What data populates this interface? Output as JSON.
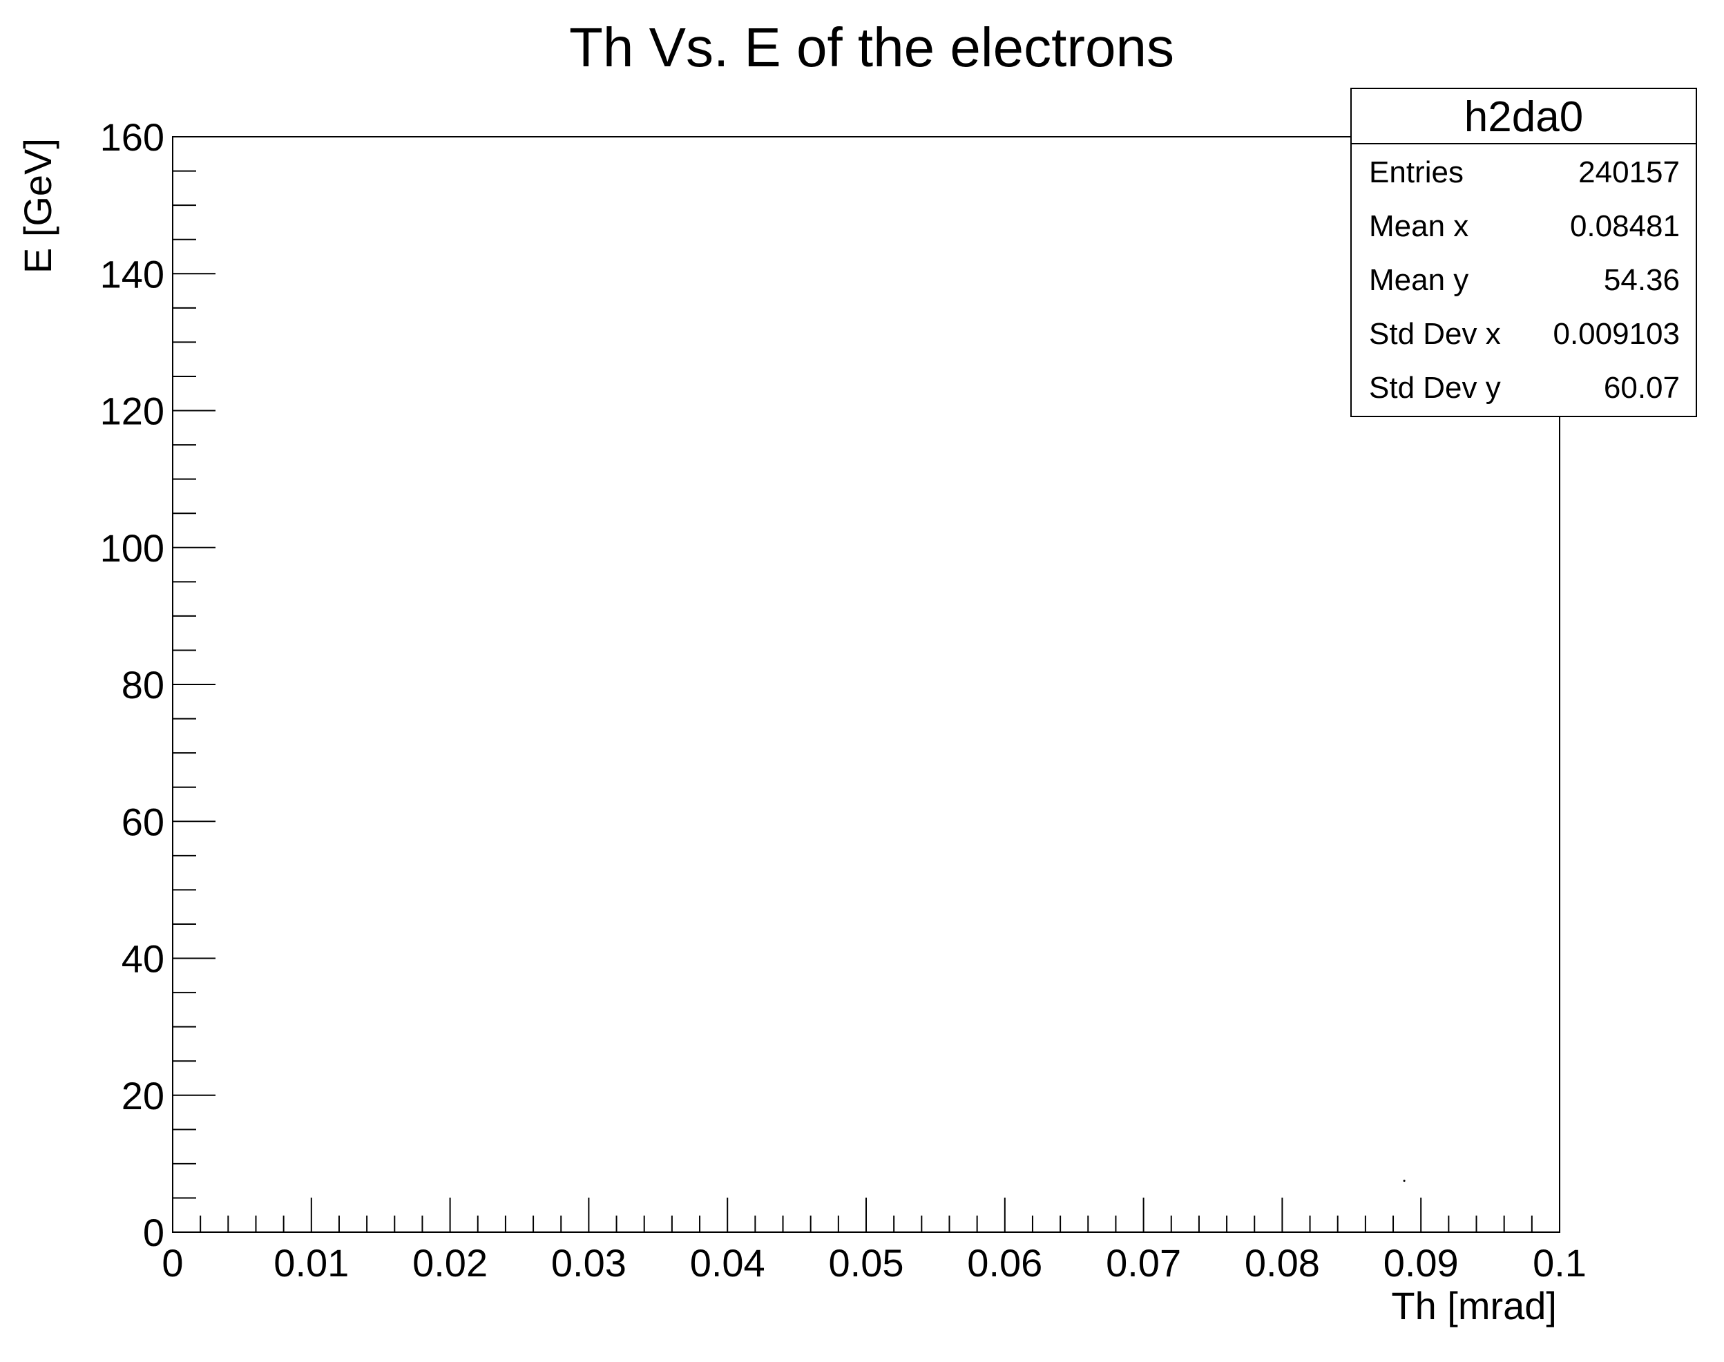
{
  "chart_data": {
    "type": "heatmap",
    "title": "Th  Vs. E of the electrons",
    "xlabel": "Th [mrad]",
    "ylabel": "E [GeV]",
    "xlim": [
      0,
      0.1
    ],
    "ylim": [
      0,
      160
    ],
    "x_ticks": [
      "0",
      "0.01",
      "0.02",
      "0.03",
      "0.04",
      "0.05",
      "0.06",
      "0.07",
      "0.08",
      "0.09",
      "0.1"
    ],
    "y_ticks": [
      "0",
      "20",
      "40",
      "60",
      "80",
      "100",
      "120",
      "140",
      "160"
    ],
    "grid": false,
    "points": [
      {
        "x": 0.0888,
        "y": 7.5
      }
    ],
    "stats_box": {
      "name": "h2da0",
      "placement": "top-right",
      "rows": [
        {
          "label": "Entries",
          "value": "240157"
        },
        {
          "label": "Mean x",
          "value": "0.08481"
        },
        {
          "label": "Mean y",
          "value": "54.36"
        },
        {
          "label": "Std Dev x",
          "value": "0.009103"
        },
        {
          "label": "Std Dev y",
          "value": "60.07"
        }
      ]
    },
    "colors": {
      "axis": "#000000",
      "background": "#ffffff",
      "marker": "#000000"
    }
  }
}
